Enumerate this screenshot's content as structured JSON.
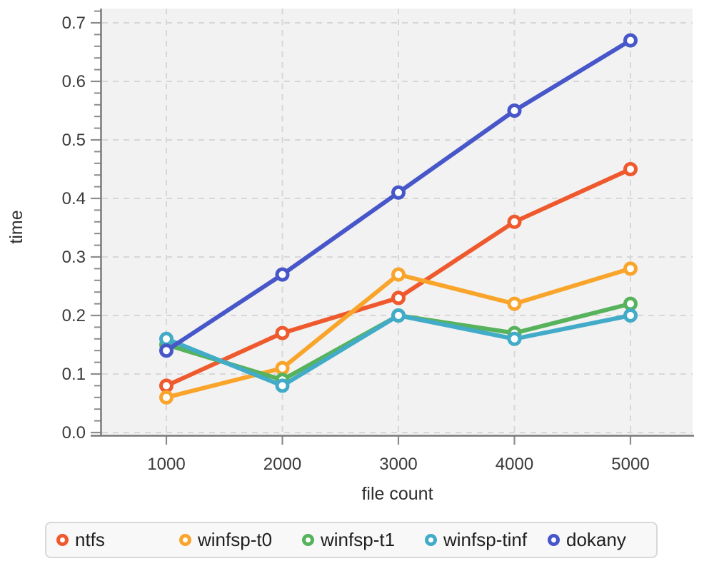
{
  "figure": {
    "background": "#ffffff",
    "plot_background": "#f2f2f2",
    "grid_color": "#d7d7d7",
    "spine_color": "#787878",
    "tick_color": "#8c8c8c",
    "tick_label_color": "#3b3b3b",
    "axis_title_color": "#2e2e2e",
    "legend_border_color": "#d8d8d8",
    "legend_background": "#f8f8f9",
    "legend_text_color": "#1f1f1f"
  },
  "chart_data": {
    "type": "line",
    "xlabel": "file count",
    "ylabel": "time",
    "x": [
      1000,
      2000,
      3000,
      4000,
      5000
    ],
    "x_tick_labels": [
      "1000",
      "2000",
      "3000",
      "4000",
      "5000"
    ],
    "y_ticks": [
      0.0,
      0.1,
      0.2,
      0.3,
      0.4,
      0.5,
      0.6,
      0.7
    ],
    "y_tick_labels": [
      "0.0",
      "0.1",
      "0.2",
      "0.3",
      "0.4",
      "0.5",
      "0.6",
      "0.7"
    ],
    "y_minor_tick_step": 0.02,
    "ylim": [
      0,
      0.725
    ],
    "xlim": [
      450,
      5540
    ],
    "grid": "dashed",
    "marker": "open-circle",
    "legend_position": "bottom",
    "series": [
      {
        "name": "ntfs",
        "color": "#ee5a2e",
        "values": [
          0.08,
          0.17,
          0.23,
          0.36,
          0.45
        ]
      },
      {
        "name": "winfsp-t0",
        "color": "#f9a52b",
        "values": [
          0.06,
          0.11,
          0.27,
          0.22,
          0.28
        ]
      },
      {
        "name": "winfsp-t1",
        "color": "#57b25c",
        "values": [
          0.15,
          0.09,
          0.2,
          0.17,
          0.22
        ]
      },
      {
        "name": "winfsp-tinf",
        "color": "#42abc8",
        "values": [
          0.16,
          0.08,
          0.2,
          0.16,
          0.2
        ]
      },
      {
        "name": "dokany",
        "color": "#4756c8",
        "values": [
          0.14,
          0.27,
          0.41,
          0.55,
          0.67
        ]
      }
    ]
  }
}
